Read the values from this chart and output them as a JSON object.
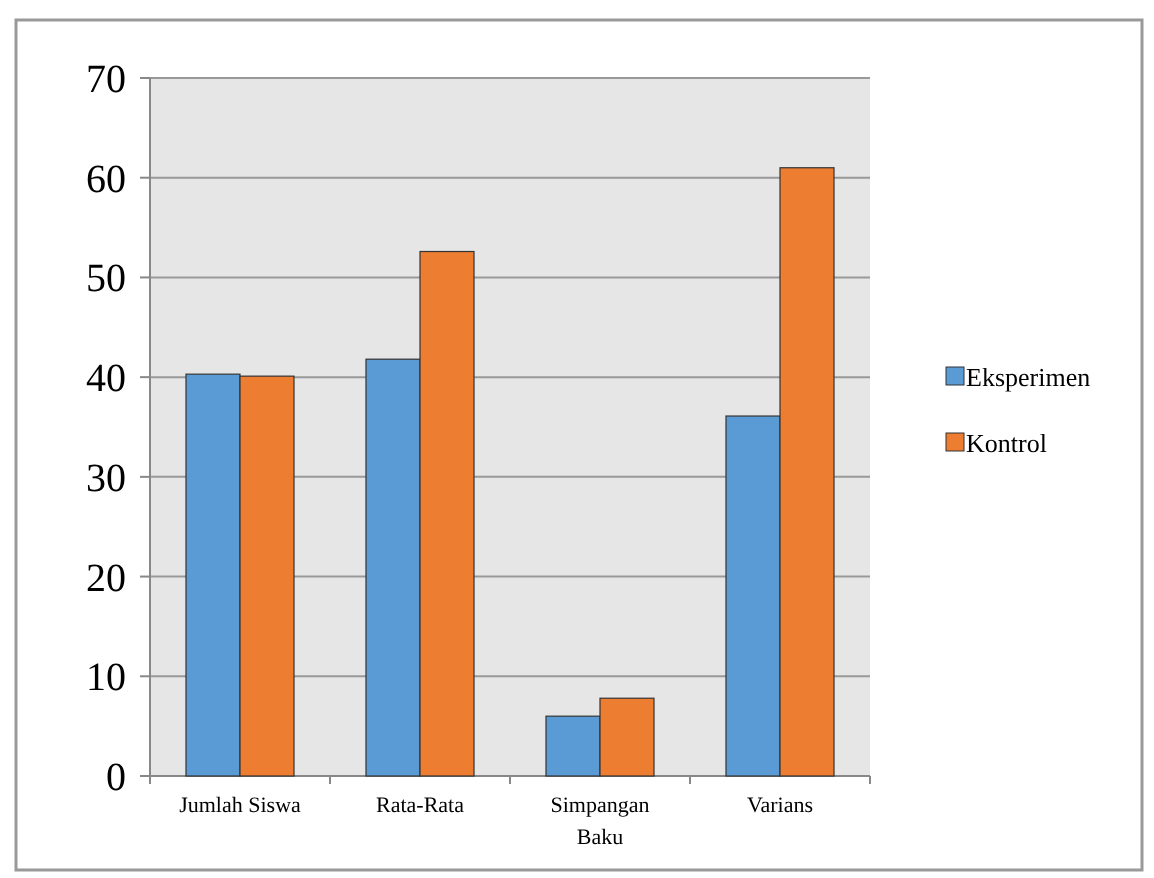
{
  "chart_data": {
    "type": "bar",
    "categories": [
      "Jumlah Siswa",
      "Rata-Rata",
      "Simpangan Baku",
      "Varians"
    ],
    "series": [
      {
        "name": "Eksperimen",
        "color": "#5b9bd5",
        "values": [
          40.3,
          41.8,
          6.0,
          36.1
        ]
      },
      {
        "name": "Kontrol",
        "color": "#ed7d31",
        "values": [
          40.1,
          52.6,
          7.8,
          61.0
        ]
      }
    ],
    "ylim": [
      0,
      70
    ],
    "yticks": [
      0,
      10,
      20,
      30,
      40,
      50,
      60,
      70
    ],
    "grid": "y",
    "legend": "right"
  }
}
